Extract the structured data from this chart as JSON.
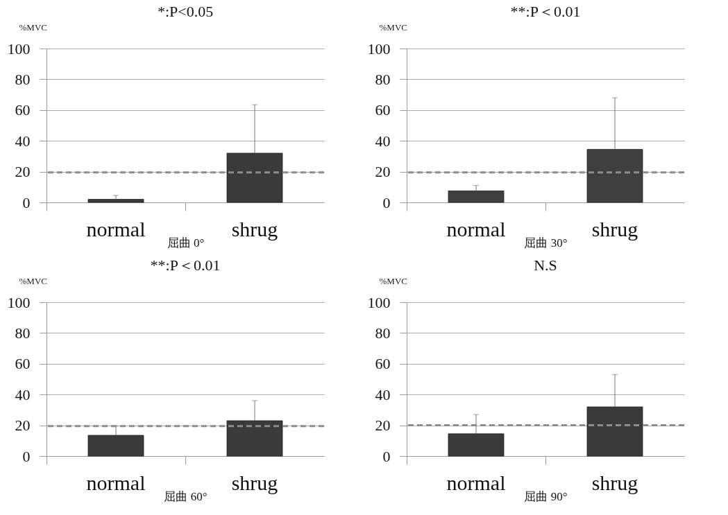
{
  "chart_data": [
    {
      "type": "bar",
      "categories": [
        "normal",
        "shrug"
      ],
      "values": [
        2,
        32
      ],
      "errors": [
        [
          2,
          4.5
        ],
        [
          32,
          63.5
        ]
      ],
      "color": "#3a3a3a",
      "xlabel": "屈曲 0°",
      "ylabel": "%MVC",
      "ylim": [
        0,
        100
      ],
      "yticks": [
        0,
        20,
        40,
        60,
        80,
        100
      ],
      "grid": "y",
      "annotations": [
        "*:P<0.05"
      ],
      "ref_lines": [
        {
          "axis": "y",
          "value": 19.5,
          "label": null,
          "color": "#8c8c8c",
          "line_style": "dashed"
        }
      ]
    },
    {
      "type": "bar",
      "categories": [
        "normal",
        "shrug"
      ],
      "values": [
        7.5,
        34.5
      ],
      "errors": [
        [
          7.5,
          11
        ],
        [
          34.5,
          68
        ]
      ],
      "color": "#3f3f3f",
      "xlabel": "屈曲 30°",
      "ylabel": "%MVC",
      "ylim": [
        0,
        100
      ],
      "yticks": [
        0,
        20,
        40,
        60,
        80,
        100
      ],
      "grid": "y",
      "annotations": [
        "**:P＜0.01"
      ],
      "ref_lines": [
        {
          "axis": "y",
          "value": 19.5,
          "label": null,
          "color": "#8c8c8c",
          "line_style": "dashed"
        }
      ]
    },
    {
      "type": "bar",
      "categories": [
        "normal",
        "shrug"
      ],
      "values": [
        13.5,
        23
      ],
      "errors": [
        [
          13.5,
          19.5
        ],
        [
          23,
          36
        ]
      ],
      "color": "#3a3a3a",
      "xlabel": "屈曲 60°",
      "ylabel": "%MVC",
      "ylim": [
        0,
        100
      ],
      "yticks": [
        0,
        20,
        40,
        60,
        80,
        100
      ],
      "grid": "y",
      "annotations": [
        "**:P＜0.01"
      ],
      "ref_lines": [
        {
          "axis": "y",
          "value": 19.5,
          "label": null,
          "color": "#8c8c8c",
          "line_style": "dashed"
        }
      ]
    },
    {
      "type": "bar",
      "categories": [
        "normal",
        "shrug"
      ],
      "values": [
        14.5,
        32
      ],
      "errors": [
        [
          14.5,
          27
        ],
        [
          32,
          53
        ]
      ],
      "color": "#3a3a3a",
      "xlabel": "屈曲 90°",
      "ylabel": "%MVC",
      "ylim": [
        0,
        100
      ],
      "yticks": [
        0,
        20,
        40,
        60,
        80,
        100
      ],
      "grid": "y",
      "annotations": [
        "N.S"
      ],
      "ref_lines": [
        {
          "axis": "y",
          "value": 20,
          "label": null,
          "color": "#8c8c8c",
          "line_style": "dashed"
        }
      ]
    }
  ]
}
